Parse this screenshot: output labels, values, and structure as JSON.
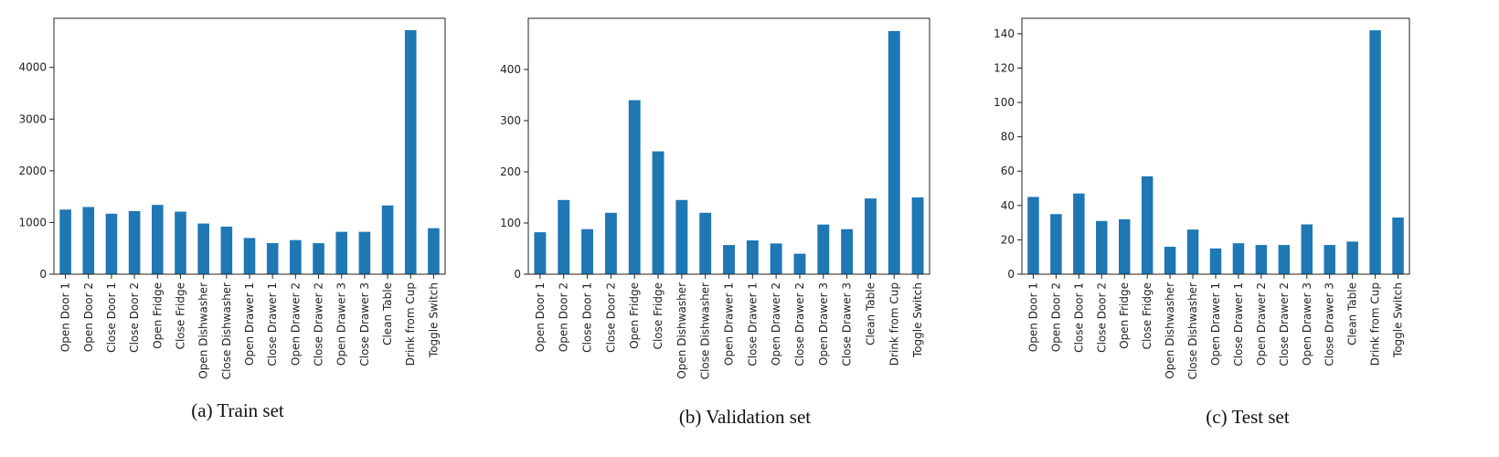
{
  "figure": {
    "bar_color": "#1f77b4",
    "charts": [
      {
        "type": "bar",
        "caption": "(a) Train set",
        "categories": [
          "Open Door 1",
          "Open Door 2",
          "Close Door 1",
          "Close Door 2",
          "Open Fridge",
          "Close Fridge",
          "Open Dishwasher",
          "Close Dishwasher",
          "Open Drawer 1",
          "Close Drawer 1",
          "Open Drawer 2",
          "Close Drawer 2",
          "Open Drawer 3",
          "Close Drawer 3",
          "Clean Table",
          "Drink from Cup",
          "Toggle Switch"
        ],
        "values": [
          1250,
          1300,
          1170,
          1220,
          1340,
          1210,
          980,
          920,
          700,
          600,
          660,
          600,
          820,
          820,
          1330,
          4720,
          890
        ],
        "yticks": [
          0,
          1000,
          2000,
          3000,
          4000
        ],
        "ylim": [
          0,
          4950
        ],
        "xlabel": "",
        "ylabel": "",
        "title": ""
      },
      {
        "type": "bar",
        "caption": "(b) Validation set",
        "categories": [
          "Open Door 1",
          "Open Door 2",
          "Close Door 1",
          "Close Door 2",
          "Open Fridge",
          "Close Fridge",
          "Open Dishwasher",
          "Close Dishwasher",
          "Open Drawer 1",
          "Close Drawer 1",
          "Open Drawer 2",
          "Close Drawer 2",
          "Open Drawer 3",
          "Close Drawer 3",
          "Clean Table",
          "Drink from Cup",
          "Toggle Switch"
        ],
        "values": [
          82,
          145,
          88,
          120,
          340,
          240,
          145,
          120,
          57,
          66,
          60,
          40,
          97,
          88,
          148,
          475,
          150
        ],
        "yticks": [
          0,
          100,
          200,
          300,
          400
        ],
        "ylim": [
          0,
          500
        ],
        "xlabel": "",
        "ylabel": "",
        "title": ""
      },
      {
        "type": "bar",
        "caption": "(c) Test set",
        "categories": [
          "Open Door 1",
          "Open Door 2",
          "Close Door 1",
          "Close Door 2",
          "Open Fridge",
          "Close Fridge",
          "Open Dishwasher",
          "Close Dishwasher",
          "Open Drawer 1",
          "Close Drawer 1",
          "Open Drawer 2",
          "Close Drawer 2",
          "Open Drawer 3",
          "Close Drawer 3",
          "Clean Table",
          "Drink from Cup",
          "Toggle Switch"
        ],
        "values": [
          45,
          35,
          47,
          31,
          32,
          57,
          16,
          26,
          15,
          18,
          17,
          17,
          29,
          17,
          19,
          142,
          33
        ],
        "yticks": [
          0,
          20,
          40,
          60,
          80,
          100,
          120,
          140
        ],
        "ylim": [
          0,
          149
        ],
        "xlabel": "",
        "ylabel": "",
        "title": ""
      }
    ]
  }
}
